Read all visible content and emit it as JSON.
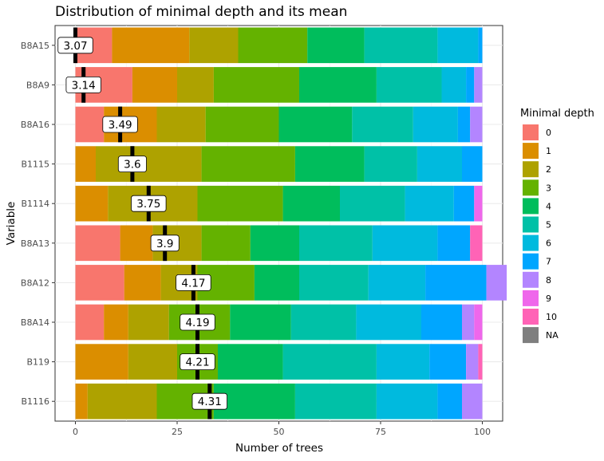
{
  "chart_data": {
    "type": "bar",
    "orientation": "horizontal",
    "stacked": true,
    "title": "Distribution of minimal depth and its mean",
    "xlabel": "Number of trees",
    "ylabel": "Variable",
    "xlim": [
      0,
      100
    ],
    "xticks": [
      0,
      25,
      50,
      75,
      100
    ],
    "grid": true,
    "legend": {
      "title": "Minimal depth",
      "position": "right",
      "items": [
        {
          "label": "0",
          "color": "#F8766D"
        },
        {
          "label": "1",
          "color": "#DB8E00"
        },
        {
          "label": "2",
          "color": "#AEA200"
        },
        {
          "label": "3",
          "color": "#64B200"
        },
        {
          "label": "4",
          "color": "#00BD5C"
        },
        {
          "label": "5",
          "color": "#00C1A7"
        },
        {
          "label": "6",
          "color": "#00BADE"
        },
        {
          "label": "7",
          "color": "#00A6FF"
        },
        {
          "label": "8",
          "color": "#B385FF"
        },
        {
          "label": "9",
          "color": "#EF67EB"
        },
        {
          "label": "10",
          "color": "#FF63B6"
        },
        {
          "label": "NA",
          "color": "#7F7F7F"
        }
      ]
    },
    "categories": [
      "B8A15",
      "B8A9",
      "B8A16",
      "B1115",
      "B1114",
      "B8A13",
      "B8A12",
      "B8A14",
      "B119",
      "B1116"
    ],
    "segments": [
      [
        9,
        19,
        12,
        17,
        14,
        18,
        10,
        1,
        0,
        0,
        0,
        0
      ],
      [
        14,
        11,
        9,
        21,
        19,
        16,
        6,
        2,
        2,
        0,
        0,
        0
      ],
      [
        7,
        13,
        12,
        18,
        18,
        15,
        11,
        3,
        3,
        0,
        0,
        0
      ],
      [
        0,
        5,
        26,
        23,
        17,
        13,
        11,
        5,
        0,
        0,
        0,
        0
      ],
      [
        0,
        8,
        22,
        21,
        14,
        16,
        12,
        5,
        0,
        2,
        0,
        0
      ],
      [
        11,
        8,
        12,
        12,
        12,
        18,
        16,
        8,
        0,
        0,
        3,
        0
      ],
      [
        12,
        9,
        9,
        14,
        11,
        17,
        14,
        15,
        5,
        0,
        0,
        0
      ],
      [
        7,
        6,
        10,
        15,
        15,
        16,
        16,
        10,
        3,
        2,
        0,
        0
      ],
      [
        0,
        13,
        12,
        10,
        16,
        23,
        13,
        9,
        3,
        0,
        1,
        0
      ],
      [
        0,
        3,
        17,
        14,
        20,
        20,
        15,
        6,
        5,
        0,
        0,
        0
      ]
    ],
    "means": [
      3.07,
      3.14,
      3.49,
      3.6,
      3.75,
      3.9,
      4.17,
      4.19,
      4.21,
      4.31
    ],
    "mean_positions": [
      0,
      2,
      11,
      14,
      18,
      22,
      29,
      30,
      30,
      33
    ]
  }
}
